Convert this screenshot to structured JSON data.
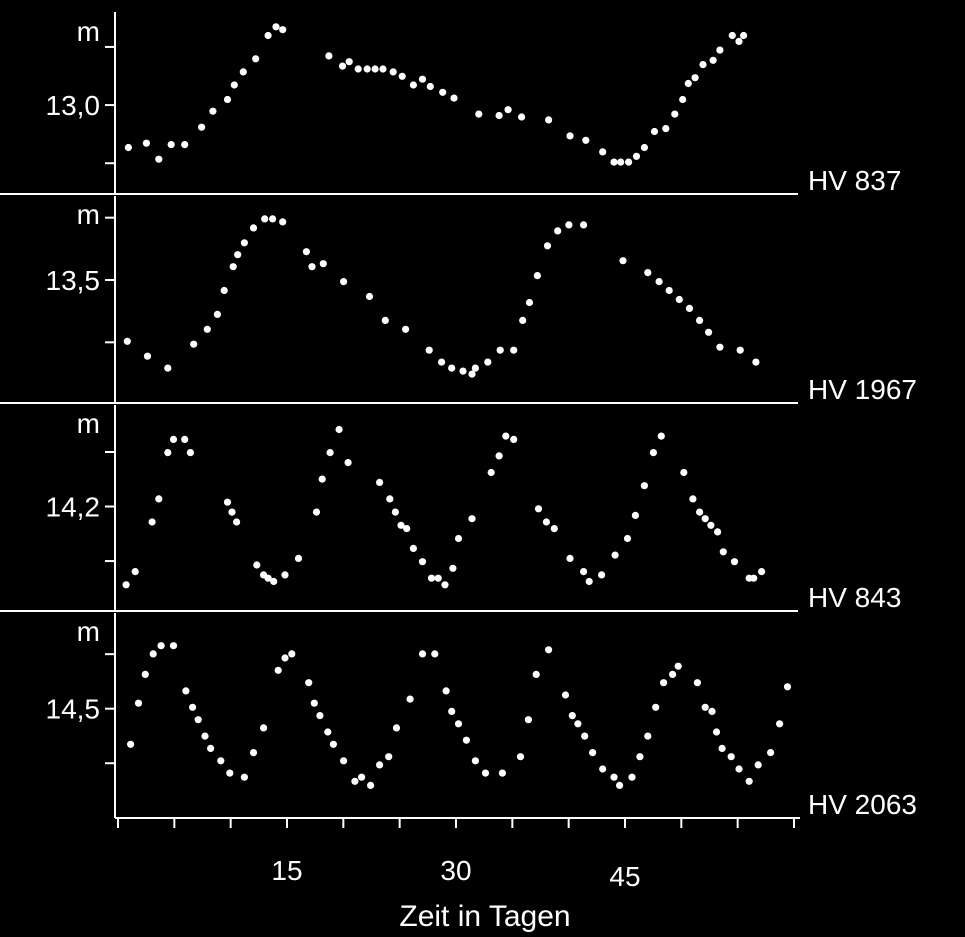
{
  "chart_data": {
    "type": "scatter",
    "xlabel": "Zeit in Tagen",
    "x_ticks": [
      15,
      30,
      45
    ],
    "xlim": [
      0,
      60
    ],
    "colors": {
      "background": "#000000",
      "foreground": "#ffffff"
    },
    "panels": [
      {
        "name": "HV 837",
        "unit": "m",
        "y_tick_label": "13,0",
        "points": [
          [
            1.1,
            0.23
          ],
          [
            2.7,
            0.26
          ],
          [
            3.8,
            0.15
          ],
          [
            4.9,
            0.25
          ],
          [
            6.1,
            0.25
          ],
          [
            7.6,
            0.37
          ],
          [
            8.6,
            0.48
          ],
          [
            9.9,
            0.56
          ],
          [
            10.5,
            0.66
          ],
          [
            11.3,
            0.75
          ],
          [
            12.4,
            0.84
          ],
          [
            13.5,
            1.0
          ],
          [
            14.2,
            1.06
          ],
          [
            14.8,
            1.04
          ],
          [
            18.9,
            0.86
          ],
          [
            20.1,
            0.79
          ],
          [
            20.7,
            0.82
          ],
          [
            21.5,
            0.77
          ],
          [
            22.3,
            0.77
          ],
          [
            23.0,
            0.77
          ],
          [
            23.7,
            0.77
          ],
          [
            24.6,
            0.75
          ],
          [
            25.4,
            0.72
          ],
          [
            26.4,
            0.66
          ],
          [
            27.2,
            0.7
          ],
          [
            27.9,
            0.65
          ],
          [
            29.0,
            0.61
          ],
          [
            30.0,
            0.57
          ],
          [
            32.2,
            0.46
          ],
          [
            34.0,
            0.45
          ],
          [
            34.8,
            0.49
          ],
          [
            36.0,
            0.44
          ],
          [
            38.4,
            0.42
          ],
          [
            40.3,
            0.31
          ],
          [
            41.7,
            0.28
          ],
          [
            43.2,
            0.2
          ],
          [
            44.2,
            0.13
          ],
          [
            44.8,
            0.13
          ],
          [
            45.5,
            0.13
          ],
          [
            46.2,
            0.17
          ],
          [
            46.9,
            0.23
          ],
          [
            47.8,
            0.34
          ],
          [
            48.8,
            0.36
          ],
          [
            49.6,
            0.46
          ],
          [
            50.3,
            0.56
          ],
          [
            50.8,
            0.67
          ],
          [
            51.4,
            0.71
          ],
          [
            52.1,
            0.8
          ],
          [
            53.0,
            0.83
          ],
          [
            53.6,
            0.9
          ],
          [
            54.7,
            1.0
          ],
          [
            55.3,
            0.96
          ],
          [
            55.7,
            1.0
          ]
        ]
      },
      {
        "name": "HV 1967",
        "unit": "m",
        "y_tick_label": "13,5",
        "points": [
          [
            1.0,
            0.46
          ],
          [
            2.8,
            0.41
          ],
          [
            4.6,
            0.37
          ],
          [
            6.9,
            0.45
          ],
          [
            8.1,
            0.5
          ],
          [
            9.0,
            0.55
          ],
          [
            9.6,
            0.63
          ],
          [
            10.4,
            0.71
          ],
          [
            10.8,
            0.75
          ],
          [
            11.4,
            0.79
          ],
          [
            12.2,
            0.84
          ],
          [
            13.2,
            0.87
          ],
          [
            13.9,
            0.87
          ],
          [
            14.8,
            0.86
          ],
          [
            16.9,
            0.76
          ],
          [
            17.4,
            0.71
          ],
          [
            18.4,
            0.72
          ],
          [
            20.2,
            0.66
          ],
          [
            22.5,
            0.61
          ],
          [
            23.9,
            0.53
          ],
          [
            25.7,
            0.5
          ],
          [
            27.8,
            0.43
          ],
          [
            28.9,
            0.39
          ],
          [
            29.8,
            0.37
          ],
          [
            30.8,
            0.36
          ],
          [
            31.6,
            0.35
          ],
          [
            31.9,
            0.37
          ],
          [
            33.0,
            0.39
          ],
          [
            34.1,
            0.43
          ],
          [
            35.3,
            0.43
          ],
          [
            36.1,
            0.53
          ],
          [
            36.7,
            0.59
          ],
          [
            37.4,
            0.68
          ],
          [
            38.3,
            0.78
          ],
          [
            39.2,
            0.83
          ],
          [
            40.2,
            0.85
          ],
          [
            41.5,
            0.85
          ],
          [
            45.0,
            0.73
          ],
          [
            47.2,
            0.69
          ],
          [
            48.2,
            0.66
          ],
          [
            49.1,
            0.63
          ],
          [
            50.0,
            0.6
          ],
          [
            50.9,
            0.57
          ],
          [
            51.8,
            0.53
          ],
          [
            52.6,
            0.49
          ],
          [
            53.6,
            0.44
          ],
          [
            55.4,
            0.43
          ],
          [
            56.8,
            0.39
          ]
        ]
      },
      {
        "name": "HV 843",
        "unit": "m",
        "y_tick_label": "14,2",
        "points": [
          [
            0.9,
            0.26
          ],
          [
            1.7,
            0.3
          ],
          [
            3.2,
            0.45
          ],
          [
            3.8,
            0.52
          ],
          [
            4.6,
            0.66
          ],
          [
            5.1,
            0.7
          ],
          [
            6.1,
            0.7
          ],
          [
            6.6,
            0.66
          ],
          [
            9.9,
            0.51
          ],
          [
            10.3,
            0.48
          ],
          [
            10.7,
            0.45
          ],
          [
            12.5,
            0.32
          ],
          [
            13.1,
            0.29
          ],
          [
            13.5,
            0.28
          ],
          [
            14.0,
            0.27
          ],
          [
            15.0,
            0.29
          ],
          [
            16.2,
            0.34
          ],
          [
            17.8,
            0.48
          ],
          [
            18.3,
            0.58
          ],
          [
            19.0,
            0.66
          ],
          [
            19.8,
            0.73
          ],
          [
            20.6,
            0.63
          ],
          [
            23.4,
            0.57
          ],
          [
            24.3,
            0.52
          ],
          [
            24.8,
            0.48
          ],
          [
            25.3,
            0.44
          ],
          [
            25.8,
            0.43
          ],
          [
            26.4,
            0.37
          ],
          [
            27.2,
            0.33
          ],
          [
            28.0,
            0.28
          ],
          [
            28.6,
            0.28
          ],
          [
            29.2,
            0.26
          ],
          [
            29.9,
            0.31
          ],
          [
            30.4,
            0.4
          ],
          [
            31.6,
            0.46
          ],
          [
            33.3,
            0.6
          ],
          [
            34.0,
            0.65
          ],
          [
            34.6,
            0.71
          ],
          [
            35.3,
            0.7
          ],
          [
            37.5,
            0.49
          ],
          [
            38.2,
            0.45
          ],
          [
            38.9,
            0.43
          ],
          [
            40.3,
            0.34
          ],
          [
            41.5,
            0.3
          ],
          [
            42.0,
            0.27
          ],
          [
            43.1,
            0.29
          ],
          [
            44.3,
            0.35
          ],
          [
            45.4,
            0.4
          ],
          [
            46.1,
            0.47
          ],
          [
            46.9,
            0.56
          ],
          [
            47.7,
            0.66
          ],
          [
            48.4,
            0.71
          ],
          [
            50.4,
            0.6
          ],
          [
            51.2,
            0.52
          ],
          [
            51.8,
            0.48
          ],
          [
            52.3,
            0.46
          ],
          [
            52.8,
            0.44
          ],
          [
            53.4,
            0.42
          ],
          [
            53.9,
            0.36
          ],
          [
            54.9,
            0.33
          ],
          [
            56.2,
            0.28
          ],
          [
            56.6,
            0.28
          ],
          [
            57.3,
            0.3
          ]
        ]
      },
      {
        "name": "HV 2063",
        "unit": "m",
        "y_tick_label": "14,5",
        "points": [
          [
            1.3,
            0.2
          ],
          [
            2.0,
            0.3
          ],
          [
            2.6,
            0.37
          ],
          [
            3.3,
            0.42
          ],
          [
            4.0,
            0.44
          ],
          [
            5.1,
            0.44
          ],
          [
            6.2,
            0.33
          ],
          [
            6.8,
            0.29
          ],
          [
            7.3,
            0.26
          ],
          [
            7.9,
            0.22
          ],
          [
            8.4,
            0.19
          ],
          [
            9.3,
            0.16
          ],
          [
            10.1,
            0.13
          ],
          [
            11.4,
            0.12
          ],
          [
            12.2,
            0.18
          ],
          [
            13.1,
            0.24
          ],
          [
            14.4,
            0.38
          ],
          [
            15.0,
            0.41
          ],
          [
            15.6,
            0.42
          ],
          [
            17.1,
            0.35
          ],
          [
            17.6,
            0.3
          ],
          [
            18.1,
            0.27
          ],
          [
            18.8,
            0.23
          ],
          [
            19.3,
            0.2
          ],
          [
            20.2,
            0.16
          ],
          [
            21.2,
            0.11
          ],
          [
            21.8,
            0.12
          ],
          [
            22.6,
            0.1
          ],
          [
            23.4,
            0.15
          ],
          [
            24.2,
            0.17
          ],
          [
            24.9,
            0.24
          ],
          [
            26.1,
            0.31
          ],
          [
            27.2,
            0.42
          ],
          [
            28.3,
            0.42
          ],
          [
            29.3,
            0.33
          ],
          [
            29.8,
            0.28
          ],
          [
            30.4,
            0.25
          ],
          [
            31.1,
            0.21
          ],
          [
            31.9,
            0.16
          ],
          [
            32.8,
            0.13
          ],
          [
            34.3,
            0.13
          ],
          [
            35.9,
            0.17
          ],
          [
            36.6,
            0.26
          ],
          [
            37.3,
            0.37
          ],
          [
            38.4,
            0.43
          ],
          [
            39.9,
            0.32
          ],
          [
            40.5,
            0.27
          ],
          [
            41.0,
            0.25
          ],
          [
            41.6,
            0.22
          ],
          [
            42.3,
            0.18
          ],
          [
            43.2,
            0.14
          ],
          [
            44.2,
            0.12
          ],
          [
            44.7,
            0.1
          ],
          [
            45.8,
            0.12
          ],
          [
            46.5,
            0.17
          ],
          [
            47.2,
            0.22
          ],
          [
            47.9,
            0.29
          ],
          [
            48.6,
            0.35
          ],
          [
            49.4,
            0.37
          ],
          [
            49.9,
            0.39
          ],
          [
            51.6,
            0.35
          ],
          [
            52.3,
            0.29
          ],
          [
            52.9,
            0.28
          ],
          [
            53.3,
            0.23
          ],
          [
            53.8,
            0.19
          ],
          [
            54.6,
            0.17
          ],
          [
            55.3,
            0.14
          ],
          [
            56.2,
            0.11
          ],
          [
            57.0,
            0.15
          ],
          [
            58.1,
            0.18
          ],
          [
            58.9,
            0.25
          ],
          [
            59.6,
            0.34
          ]
        ]
      }
    ]
  }
}
